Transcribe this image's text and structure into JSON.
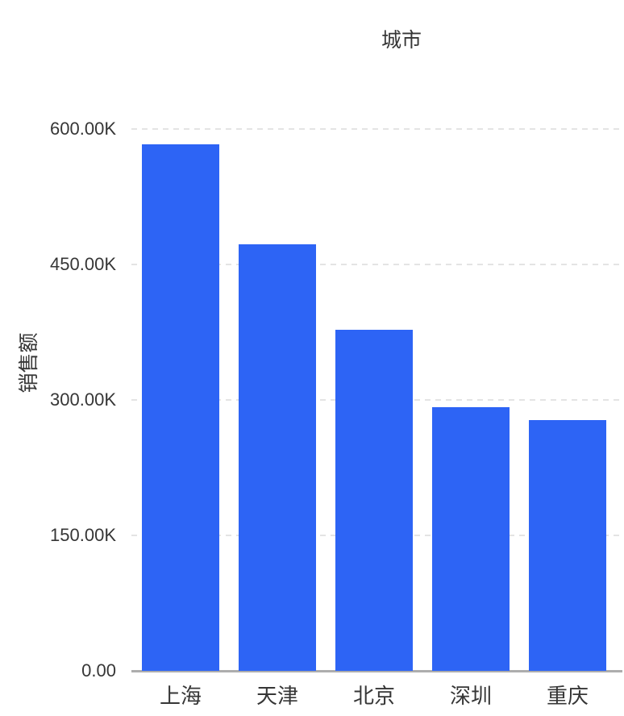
{
  "chart": {
    "title": "城市",
    "y_axis_title": "销售额",
    "colors": {
      "bar": "#2D64F5",
      "text": "#363636",
      "gridline": "#E4E4E4",
      "baseline": "#ADADAD",
      "background": "#FFFFFF"
    }
  },
  "chart_data": {
    "type": "bar",
    "title": "城市",
    "xlabel": "",
    "ylabel": "销售额",
    "categories": [
      "上海",
      "天津",
      "北京",
      "深圳",
      "重庆"
    ],
    "values": [
      583000,
      472000,
      378000,
      292000,
      278000
    ],
    "ylim": [
      0,
      600000
    ],
    "yticks": [
      0,
      150000,
      300000,
      450000,
      600000
    ],
    "ytick_labels": [
      "0.00",
      "150.00K",
      "300.00K",
      "450.00K",
      "600.00K"
    ],
    "grid": "horizontal-dashed",
    "legend": "none",
    "bar_color": "#2D64F5"
  }
}
